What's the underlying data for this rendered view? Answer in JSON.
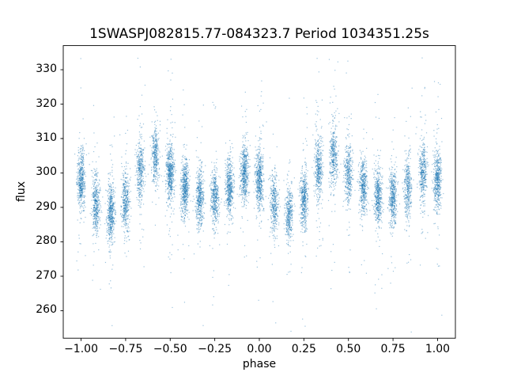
{
  "chart_data": {
    "type": "scatter",
    "title": "1SWASPJ082815.77-084323.7 Period 1034351.25s",
    "xlabel": "phase",
    "ylabel": "flux",
    "xlim": [
      -1.1,
      1.1
    ],
    "ylim": [
      252,
      337
    ],
    "xticks": [
      -1.0,
      -0.75,
      -0.5,
      -0.25,
      0.0,
      0.25,
      0.5,
      0.75,
      1.0
    ],
    "xtick_labels": [
      "−1.00",
      "−0.75",
      "−0.50",
      "−0.25",
      "0.00",
      "0.25",
      "0.50",
      "0.75",
      "1.00"
    ],
    "yticks": [
      260,
      270,
      280,
      290,
      300,
      310,
      320,
      330
    ],
    "ytick_labels": [
      "260",
      "270",
      "280",
      "290",
      "300",
      "310",
      "320",
      "330"
    ],
    "grid": false,
    "legend": "none",
    "point_color": "#1f77b4",
    "point_alpha": 0.45,
    "marker_size_px": 1.2,
    "points_per_cluster": 420,
    "outliers_per_cluster": 45,
    "cluster_sigma_flux": 4.2,
    "cluster_sigma_phase": 0.011,
    "outlier_sigma_flux": 13,
    "outlier_sigma_phase": 0.013,
    "clusters": [
      [
        -1.0,
        298
      ],
      [
        -0.917,
        291
      ],
      [
        -0.833,
        288
      ],
      [
        -0.75,
        292
      ],
      [
        -0.667,
        301
      ],
      [
        -0.583,
        305
      ],
      [
        -0.5,
        300
      ],
      [
        -0.417,
        296
      ],
      [
        -0.333,
        293
      ],
      [
        -0.25,
        293
      ],
      [
        -0.167,
        296
      ],
      [
        -0.083,
        300
      ],
      [
        0.0,
        298
      ],
      [
        0.083,
        291
      ],
      [
        0.167,
        288
      ],
      [
        0.25,
        292
      ],
      [
        0.333,
        301
      ],
      [
        0.417,
        305
      ],
      [
        0.5,
        300
      ],
      [
        0.583,
        296
      ],
      [
        0.667,
        293
      ],
      [
        0.75,
        293
      ],
      [
        0.833,
        296
      ],
      [
        0.917,
        300
      ],
      [
        1.0,
        298
      ]
    ]
  }
}
